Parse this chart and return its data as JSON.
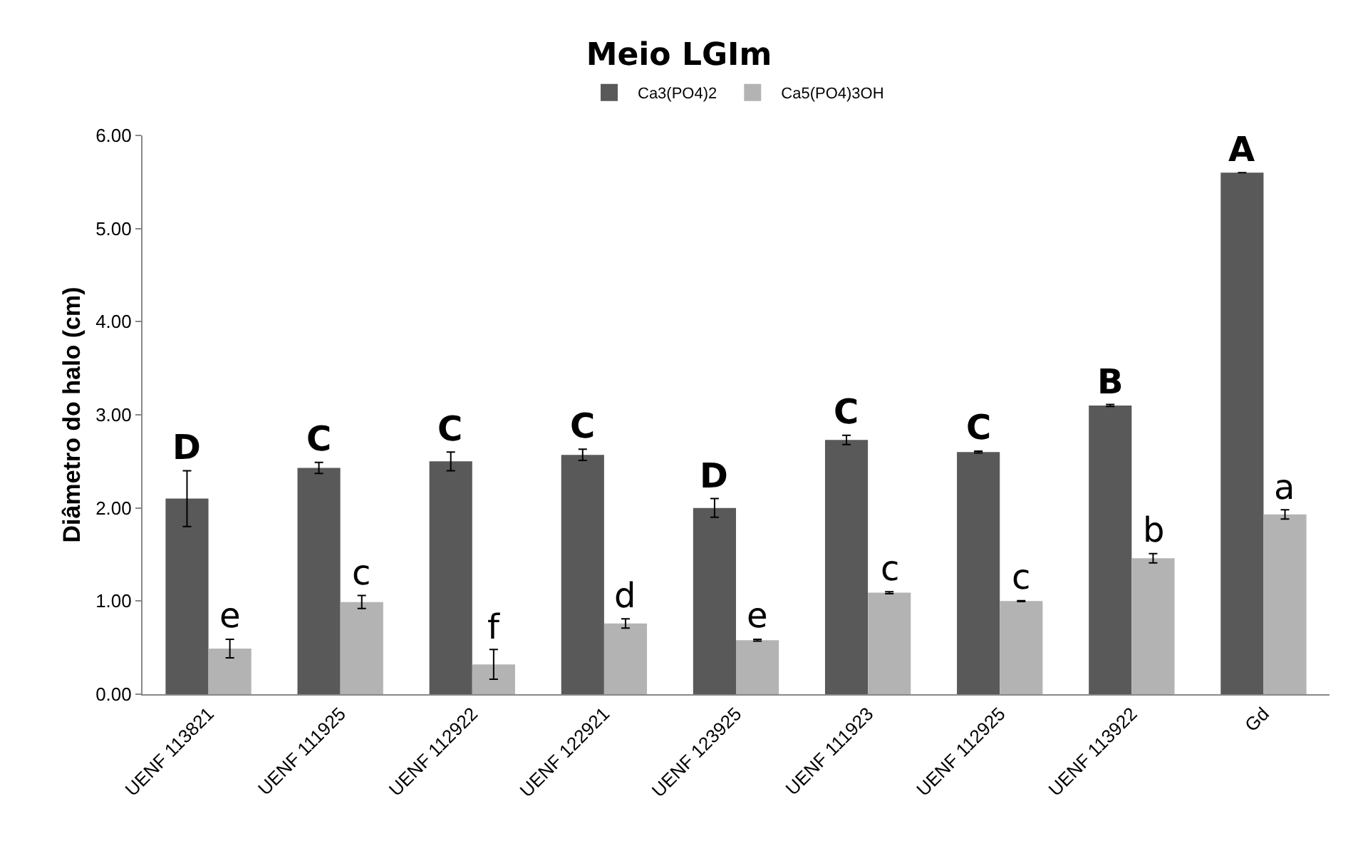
{
  "chart_data": {
    "type": "bar",
    "title": "Meio LGIm",
    "ylabel": "Diâmetro do halo (cm)",
    "categories": [
      "UENF 113821",
      "UENF 111925",
      "UENF 112922",
      "UENF 122921",
      "UENF 123925",
      "UENF 111923",
      "UENF 112925",
      "UENF 113922",
      "Gd"
    ],
    "series": [
      {
        "name": "Ca3(PO4)2",
        "color": "#595959",
        "values": [
          2.1,
          2.43,
          2.5,
          2.57,
          2.0,
          2.73,
          2.6,
          3.1,
          5.6
        ],
        "errors": [
          0.3,
          0.06,
          0.1,
          0.06,
          0.1,
          0.05,
          0.01,
          0.01,
          0
        ],
        "value_labels": [
          "D",
          "C",
          "C",
          "C",
          "D",
          "C",
          "C",
          "B",
          "A"
        ]
      },
      {
        "name": "Ca5(PO4)3OH",
        "color": "#b3b3b3",
        "values": [
          0.49,
          0.99,
          0.32,
          0.76,
          0.58,
          1.09,
          1.0,
          1.46,
          1.93
        ],
        "errors": [
          0.1,
          0.07,
          0.16,
          0.05,
          0.01,
          0.01,
          0.005,
          0.05,
          0.05
        ],
        "value_labels": [
          "e",
          "c",
          "f",
          "d",
          "e",
          "c",
          "c",
          "b",
          "a"
        ]
      }
    ],
    "ylim": [
      0,
      6
    ],
    "yticks": [
      {
        "value": 0,
        "label": "0.00"
      },
      {
        "value": 1,
        "label": "1.00"
      },
      {
        "value": 2,
        "label": "2.00"
      },
      {
        "value": 3,
        "label": "3.00"
      },
      {
        "value": 4,
        "label": "4.00"
      },
      {
        "value": 5,
        "label": "5.00"
      },
      {
        "value": 6,
        "label": "6.00"
      }
    ],
    "legend": "top",
    "grid": false
  }
}
